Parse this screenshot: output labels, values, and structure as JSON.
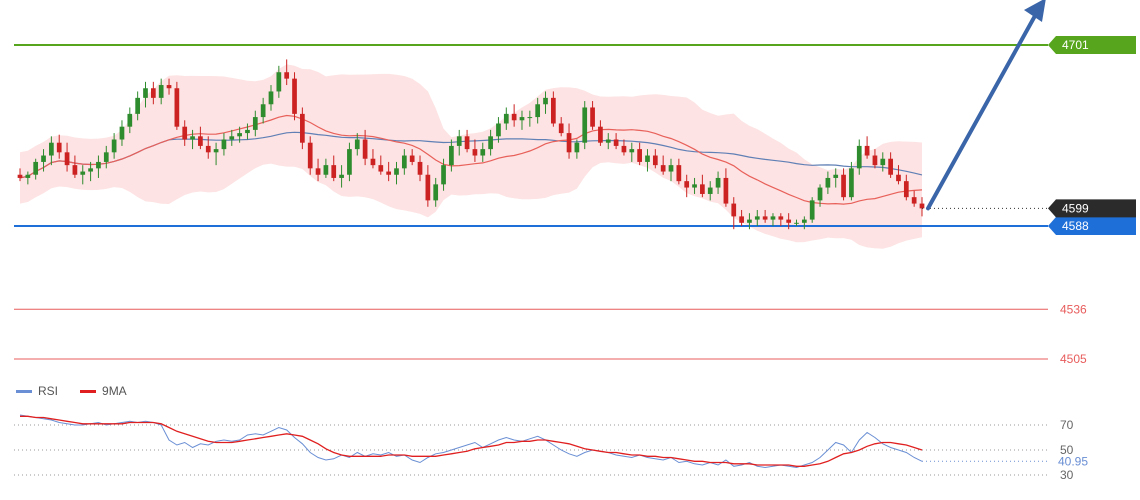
{
  "chart_data": [
    {
      "type": "candlestick",
      "colors": {
        "up": "#2e8b2e",
        "down": "#cc2222",
        "bollinger_fill": "#fde3e3",
        "ma_short": "#e8605a",
        "ma_long": "#5f7fb5"
      },
      "ylim": [
        4490,
        4710
      ],
      "ohlc": [
        [
          4620,
          4624,
          4616,
          4618
        ],
        [
          4618,
          4622,
          4614,
          4620
        ],
        [
          4620,
          4630,
          4617,
          4628
        ],
        [
          4628,
          4636,
          4622,
          4632
        ],
        [
          4632,
          4644,
          4626,
          4640
        ],
        [
          4640,
          4645,
          4630,
          4634
        ],
        [
          4634,
          4640,
          4622,
          4626
        ],
        [
          4626,
          4632,
          4618,
          4620
        ],
        [
          4620,
          4626,
          4614,
          4622
        ],
        [
          4622,
          4628,
          4616,
          4624
        ],
        [
          4624,
          4632,
          4618,
          4628
        ],
        [
          4628,
          4638,
          4624,
          4634
        ],
        [
          4634,
          4646,
          4630,
          4642
        ],
        [
          4642,
          4654,
          4638,
          4650
        ],
        [
          4650,
          4662,
          4646,
          4658
        ],
        [
          4658,
          4672,
          4654,
          4668
        ],
        [
          4668,
          4678,
          4662,
          4674
        ],
        [
          4674,
          4678,
          4664,
          4668
        ],
        [
          4668,
          4680,
          4664,
          4676
        ],
        [
          4676,
          4680,
          4670,
          4674
        ],
        [
          4674,
          4678,
          4648,
          4650
        ],
        [
          4650,
          4654,
          4638,
          4642
        ],
        [
          4642,
          4648,
          4636,
          4644
        ],
        [
          4644,
          4650,
          4636,
          4638
        ],
        [
          4638,
          4644,
          4630,
          4634
        ],
        [
          4634,
          4640,
          4626,
          4636
        ],
        [
          4636,
          4646,
          4632,
          4642
        ],
        [
          4642,
          4648,
          4638,
          4644
        ],
        [
          4644,
          4650,
          4640,
          4646
        ],
        [
          4646,
          4652,
          4642,
          4648
        ],
        [
          4648,
          4660,
          4644,
          4656
        ],
        [
          4656,
          4668,
          4652,
          4664
        ],
        [
          4664,
          4676,
          4660,
          4672
        ],
        [
          4672,
          4688,
          4668,
          4684
        ],
        [
          4684,
          4692,
          4676,
          4680
        ],
        [
          4680,
          4684,
          4654,
          4658
        ],
        [
          4658,
          4662,
          4636,
          4640
        ],
        [
          4640,
          4644,
          4620,
          4624
        ],
        [
          4624,
          4630,
          4616,
          4620
        ],
        [
          4620,
          4630,
          4618,
          4626
        ],
        [
          4626,
          4632,
          4616,
          4618
        ],
        [
          4618,
          4626,
          4612,
          4620
        ],
        [
          4620,
          4640,
          4616,
          4636
        ],
        [
          4636,
          4646,
          4632,
          4642
        ],
        [
          4642,
          4648,
          4626,
          4630
        ],
        [
          4630,
          4636,
          4624,
          4626
        ],
        [
          4626,
          4632,
          4620,
          4622
        ],
        [
          4622,
          4628,
          4616,
          4620
        ],
        [
          4620,
          4628,
          4614,
          4624
        ],
        [
          4624,
          4636,
          4620,
          4632
        ],
        [
          4632,
          4636,
          4626,
          4628
        ],
        [
          4628,
          4632,
          4616,
          4620
        ],
        [
          4620,
          4626,
          4600,
          4604
        ],
        [
          4604,
          4618,
          4600,
          4614
        ],
        [
          4614,
          4630,
          4610,
          4626
        ],
        [
          4626,
          4642,
          4622,
          4638
        ],
        [
          4638,
          4648,
          4632,
          4644
        ],
        [
          4644,
          4648,
          4634,
          4636
        ],
        [
          4636,
          4642,
          4628,
          4632
        ],
        [
          4632,
          4640,
          4628,
          4636
        ],
        [
          4636,
          4648,
          4632,
          4644
        ],
        [
          4644,
          4656,
          4640,
          4652
        ],
        [
          4652,
          4662,
          4648,
          4658
        ],
        [
          4658,
          4664,
          4650,
          4654
        ],
        [
          4654,
          4660,
          4648,
          4656
        ],
        [
          4656,
          4660,
          4650,
          4656
        ],
        [
          4656,
          4668,
          4652,
          4664
        ],
        [
          4664,
          4672,
          4658,
          4668
        ],
        [
          4668,
          4672,
          4650,
          4652
        ],
        [
          4652,
          4656,
          4644,
          4646
        ],
        [
          4646,
          4652,
          4630,
          4634
        ],
        [
          4634,
          4642,
          4630,
          4640
        ],
        [
          4640,
          4666,
          4636,
          4662
        ],
        [
          4662,
          4666,
          4648,
          4650
        ],
        [
          4650,
          4654,
          4638,
          4640
        ],
        [
          4640,
          4646,
          4636,
          4642
        ],
        [
          4642,
          4646,
          4636,
          4638
        ],
        [
          4638,
          4642,
          4632,
          4634
        ],
        [
          4634,
          4640,
          4628,
          4636
        ],
        [
          4636,
          4640,
          4626,
          4628
        ],
        [
          4628,
          4636,
          4622,
          4632
        ],
        [
          4632,
          4636,
          4624,
          4626
        ],
        [
          4626,
          4632,
          4620,
          4622
        ],
        [
          4622,
          4630,
          4616,
          4626
        ],
        [
          4626,
          4630,
          4614,
          4616
        ],
        [
          4616,
          4620,
          4606,
          4612
        ],
        [
          4612,
          4618,
          4608,
          4614
        ],
        [
          4614,
          4620,
          4606,
          4608
        ],
        [
          4608,
          4616,
          4604,
          4612
        ],
        [
          4612,
          4622,
          4608,
          4618
        ],
        [
          4618,
          4624,
          4600,
          4602
        ],
        [
          4602,
          4606,
          4586,
          4594
        ],
        [
          4594,
          4598,
          4588,
          4590
        ],
        [
          4590,
          4596,
          4586,
          4592
        ],
        [
          4592,
          4598,
          4588,
          4594
        ],
        [
          4594,
          4598,
          4590,
          4592
        ],
        [
          4592,
          4596,
          4588,
          4594
        ],
        [
          4594,
          4596,
          4588,
          4592
        ],
        [
          4592,
          4596,
          4586,
          4590
        ],
        [
          4590,
          4592,
          4588,
          4590
        ],
        [
          4590,
          4594,
          4586,
          4592
        ],
        [
          4592,
          4606,
          4590,
          4604
        ],
        [
          4604,
          4614,
          4600,
          4612
        ],
        [
          4612,
          4622,
          4608,
          4618
        ],
        [
          4618,
          4624,
          4612,
          4620
        ],
        [
          4620,
          4624,
          4604,
          4606
        ],
        [
          4606,
          4628,
          4604,
          4624
        ],
        [
          4624,
          4642,
          4620,
          4638
        ],
        [
          4638,
          4644,
          4630,
          4632
        ],
        [
          4632,
          4636,
          4624,
          4626
        ],
        [
          4626,
          4634,
          4622,
          4630
        ],
        [
          4630,
          4634,
          4618,
          4620
        ],
        [
          4620,
          4626,
          4614,
          4616
        ],
        [
          4616,
          4620,
          4604,
          4606
        ],
        [
          4606,
          4610,
          4600,
          4602
        ],
        [
          4602,
          4606,
          4594,
          4599
        ]
      ],
      "current_price": "4599",
      "levels": [
        {
          "value": 4701,
          "label": "4701",
          "color": "#56a51c",
          "style": "resistance"
        },
        {
          "value": 4588,
          "label": "4588",
          "color": "#1f6fd8",
          "style": "pivot"
        },
        {
          "value": 4536,
          "label": "4536",
          "color": "#e85c5c",
          "style": "support"
        },
        {
          "value": 4505,
          "label": "4505",
          "color": "#e85c5c",
          "style": "support"
        }
      ],
      "arrow": {
        "direction": "up",
        "color": "#3a65a8"
      }
    },
    {
      "type": "line",
      "legend": [
        {
          "name": "RSI",
          "color": "#6a8fd4"
        },
        {
          "name": "9MA",
          "color": "#e02020"
        }
      ],
      "ylim": [
        25,
        85
      ],
      "yticks": [
        "70",
        "50",
        "30"
      ],
      "current_value": "40.95",
      "series": [
        {
          "name": "RSI",
          "values": [
            78,
            77,
            76,
            75,
            74,
            72,
            71,
            70,
            70,
            71,
            72,
            70,
            71,
            72,
            73,
            72,
            73,
            72,
            70,
            58,
            54,
            56,
            52,
            55,
            54,
            57,
            58,
            57,
            58,
            62,
            63,
            62,
            65,
            68,
            66,
            60,
            55,
            48,
            44,
            42,
            43,
            46,
            44,
            48,
            45,
            47,
            46,
            48,
            45,
            46,
            42,
            40,
            44,
            47,
            48,
            50,
            52,
            54,
            56,
            52,
            55,
            58,
            60,
            58,
            57,
            59,
            61,
            58,
            54,
            50,
            47,
            45,
            48,
            50,
            49,
            48,
            46,
            45,
            44,
            46,
            44,
            43,
            42,
            44,
            40,
            41,
            39,
            38,
            40,
            38,
            42,
            37,
            38,
            40,
            37,
            36,
            37,
            38,
            37,
            36,
            38,
            40,
            44,
            50,
            56,
            54,
            48,
            58,
            64,
            60,
            55,
            52,
            50,
            48,
            44,
            41
          ]
        },
        {
          "name": "9MA",
          "values": [
            77,
            77,
            76,
            76,
            75,
            74,
            73,
            72,
            71,
            71,
            71,
            71,
            71,
            71,
            72,
            72,
            72,
            72,
            71,
            68,
            65,
            63,
            61,
            59,
            57,
            56,
            56,
            56,
            57,
            58,
            59,
            60,
            61,
            62,
            63,
            62,
            61,
            58,
            55,
            51,
            48,
            46,
            45,
            45,
            45,
            45,
            45,
            46,
            46,
            46,
            45,
            45,
            45,
            45,
            46,
            47,
            48,
            49,
            51,
            52,
            53,
            54,
            56,
            56,
            57,
            57,
            58,
            58,
            57,
            56,
            55,
            53,
            51,
            50,
            49,
            48,
            48,
            47,
            46,
            46,
            45,
            45,
            44,
            44,
            43,
            42,
            41,
            41,
            40,
            40,
            40,
            39,
            39,
            39,
            38,
            38,
            38,
            38,
            38,
            37,
            37,
            38,
            39,
            41,
            44,
            47,
            48,
            50,
            53,
            55,
            56,
            56,
            55,
            54,
            52,
            50
          ]
        }
      ]
    }
  ]
}
